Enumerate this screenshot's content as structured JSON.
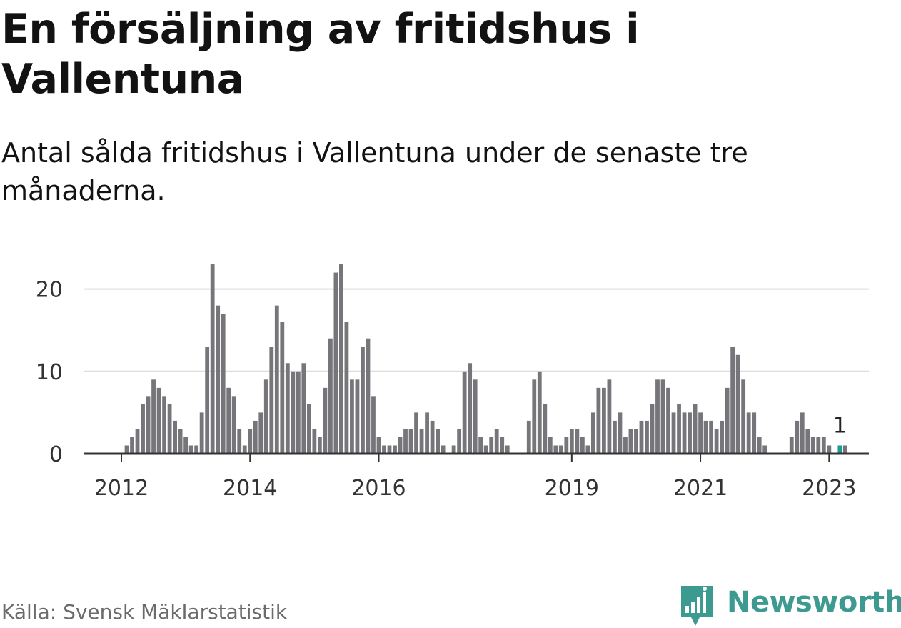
{
  "title": "En försäljning av fritidshus i Vallentuna",
  "subtitle": "Antal sålda fritidshus i Vallentuna under de senaste tre månaderna.",
  "source": "Källa: Svensk Mäklarstatistik",
  "brand": {
    "name": "Newsworthy",
    "icon": "newsworthy-logo-icon",
    "color": "#3c9a90"
  },
  "colors": {
    "bar": "#76757a",
    "highlight": "#1a9e8f",
    "grid": "#dddddd",
    "axis": "#333333"
  },
  "chart_data": {
    "type": "bar",
    "title": "",
    "xlabel": "",
    "ylabel": "",
    "ylim": [
      0,
      23
    ],
    "yticks": [
      0,
      10,
      20
    ],
    "xticks": [
      {
        "index": 0,
        "label": "2012"
      },
      {
        "index": 24,
        "label": "2014"
      },
      {
        "index": 48,
        "label": "2016"
      },
      {
        "index": 84,
        "label": "2019"
      },
      {
        "index": 108,
        "label": "2021"
      },
      {
        "index": 132,
        "label": "2023"
      }
    ],
    "grid": true,
    "values": [
      0,
      1,
      2,
      3,
      6,
      7,
      9,
      8,
      7,
      6,
      4,
      3,
      2,
      1,
      1,
      5,
      13,
      23,
      18,
      17,
      8,
      7,
      3,
      1,
      3,
      4,
      5,
      9,
      13,
      18,
      16,
      11,
      10,
      10,
      11,
      6,
      3,
      2,
      8,
      14,
      22,
      23,
      16,
      9,
      9,
      13,
      14,
      7,
      2,
      1,
      1,
      1,
      2,
      3,
      3,
      5,
      3,
      5,
      4,
      3,
      1,
      0,
      1,
      3,
      10,
      11,
      9,
      2,
      1,
      2,
      3,
      2,
      1,
      0,
      0,
      0,
      4,
      9,
      10,
      6,
      2,
      1,
      1,
      2,
      3,
      3,
      2,
      1,
      5,
      8,
      8,
      9,
      4,
      5,
      2,
      3,
      3,
      4,
      4,
      6,
      9,
      9,
      8,
      5,
      6,
      5,
      5,
      6,
      5,
      4,
      4,
      3,
      4,
      8,
      13,
      12,
      9,
      5,
      5,
      2,
      1,
      0,
      0,
      0,
      0,
      2,
      4,
      5,
      3,
      2,
      2,
      2,
      1,
      0,
      1,
      1
    ],
    "highlight_index": 134,
    "annotation": {
      "index": 134,
      "label": "1"
    }
  }
}
